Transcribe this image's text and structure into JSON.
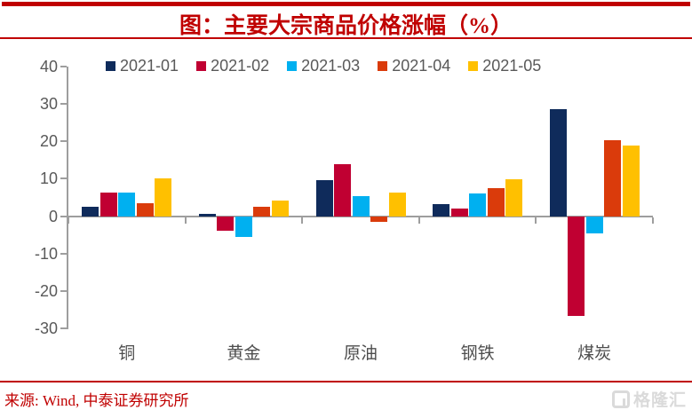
{
  "header": {
    "title": "图：主要大宗商品价格涨幅（%）"
  },
  "footer": {
    "source": "来源: Wind, 中泰证券研究所",
    "watermark": "格隆汇"
  },
  "colors": {
    "accent_red": "#C00000",
    "axis_gray": "#9e9e9e",
    "label_gray": "#595959",
    "watermark_gray": "#dadada"
  },
  "chart_data": {
    "type": "bar",
    "title": "主要大宗商品价格涨幅（%）",
    "categories": [
      "铜",
      "黄金",
      "原油",
      "钢铁",
      "煤炭"
    ],
    "series": [
      {
        "name": "2021-01",
        "color": "#0F2B5B",
        "values": [
          2.6,
          0.5,
          9.7,
          3.2,
          28.5
        ]
      },
      {
        "name": "2021-02",
        "color": "#C00032",
        "values": [
          6.2,
          -3.8,
          13.8,
          2.1,
          -26.7
        ]
      },
      {
        "name": "2021-03",
        "color": "#00B0F0",
        "values": [
          6.4,
          -5.5,
          5.4,
          6.1,
          -4.6
        ]
      },
      {
        "name": "2021-04",
        "color": "#DA3B0B",
        "values": [
          3.4,
          2.4,
          -1.5,
          7.6,
          20.3
        ]
      },
      {
        "name": "2021-05",
        "color": "#FFC000",
        "values": [
          10.0,
          4.2,
          6.4,
          9.9,
          19.0
        ]
      }
    ],
    "ylim": [
      -30,
      40
    ],
    "yticks": [
      40,
      30,
      20,
      10,
      0,
      -10,
      -20,
      -30
    ],
    "grid": false,
    "legend_position": "top",
    "xlabel": "",
    "ylabel": ""
  }
}
